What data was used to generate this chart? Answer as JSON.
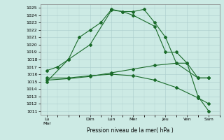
{
  "xlabel": "Pression niveau de la mer( hPa )",
  "background_color": "#cceae4",
  "grid_color": "#aacccc",
  "line_color": "#1a6b2a",
  "x_tick_labels": [
    "Lu\nMar",
    "Dim",
    "Lun",
    "Mer",
    "Jeu",
    "Ven",
    "Sam"
  ],
  "x_tick_positions": [
    0,
    2,
    3,
    4,
    5.5,
    6.5,
    7.5
  ],
  "ylim": [
    1010.5,
    1025.5
  ],
  "yticks": [
    1011,
    1012,
    1013,
    1014,
    1015,
    1016,
    1017,
    1018,
    1019,
    1020,
    1021,
    1022,
    1023,
    1024,
    1025
  ],
  "xlim": [
    -0.3,
    8.0
  ],
  "series": [
    {
      "x": [
        0,
        1,
        2,
        3,
        3.5,
        4,
        5,
        5.5,
        6,
        6.5,
        7,
        7.5
      ],
      "y": [
        1015.0,
        1018.0,
        1020.0,
        1024.7,
        1024.5,
        1024.0,
        1022.5,
        1019.0,
        1019.0,
        1017.5,
        1015.5,
        1015.5
      ]
    },
    {
      "x": [
        0,
        0.5,
        1,
        1.5,
        2,
        2.5,
        3,
        3.5,
        4,
        4.5,
        5,
        5.5,
        6,
        6.5,
        7,
        7.5
      ],
      "y": [
        1016.5,
        1017.0,
        1018.0,
        1021.0,
        1022.0,
        1023.0,
        1024.8,
        1024.5,
        1024.5,
        1024.8,
        1023.0,
        1021.0,
        1017.5,
        1017.5,
        1013.0,
        1011.0
      ]
    },
    {
      "x": [
        0,
        1,
        2,
        3,
        4,
        5,
        6,
        7,
        7.5
      ],
      "y": [
        1015.2,
        1015.4,
        1015.7,
        1016.2,
        1016.7,
        1017.2,
        1017.5,
        1015.5,
        1015.5
      ]
    },
    {
      "x": [
        0,
        1,
        2,
        3,
        4,
        5,
        6,
        7,
        7.5
      ],
      "y": [
        1015.5,
        1015.5,
        1015.8,
        1016.0,
        1015.8,
        1015.2,
        1014.2,
        1012.8,
        1012.0
      ]
    }
  ]
}
